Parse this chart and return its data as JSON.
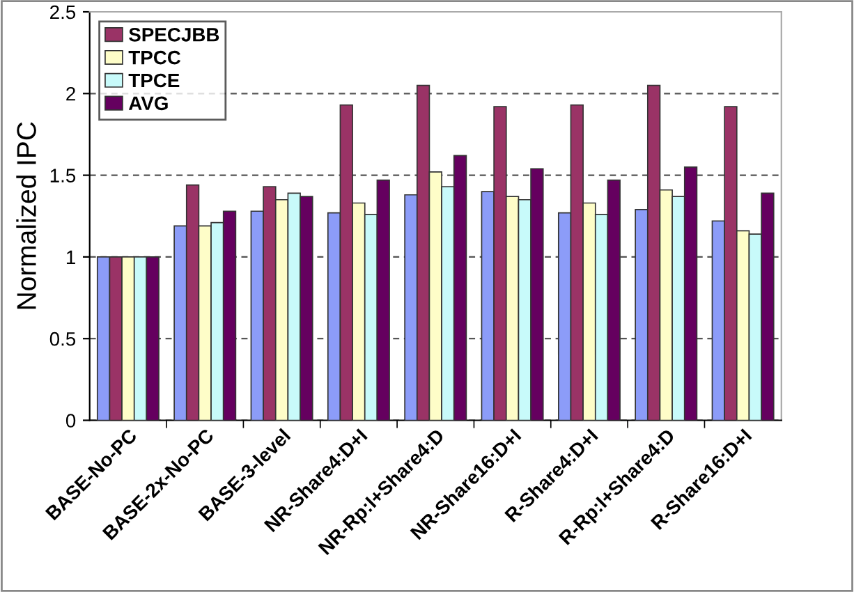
{
  "chart_data": {
    "type": "bar",
    "ylabel": "Normalized IPC",
    "categories": [
      "BASE-No-PC",
      "BASE-2x-No-PC",
      "BASE-3-level",
      "NR-Share4:D+I",
      "NR-Rp:I+Share4:D",
      "NR-Share16:D+I",
      "R-Share4:D+I",
      "R-Rp:I+Share4:D",
      "R-Share16:D+I"
    ],
    "series": [
      {
        "color": "#8c9cf8",
        "values": [
          1,
          1.19,
          1.28,
          1.27,
          1.38,
          1.4,
          1.27,
          1.29,
          1.22
        ]
      },
      {
        "name": "SPECJBB",
        "color": "#9a3366",
        "values": [
          1,
          1.44,
          1.43,
          1.93,
          2.05,
          1.92,
          1.93,
          2.05,
          1.92
        ]
      },
      {
        "name": "TPCC",
        "color": "#fefdc8",
        "values": [
          1,
          1.19,
          1.35,
          1.33,
          1.52,
          1.37,
          1.33,
          1.41,
          1.16
        ]
      },
      {
        "name": "TPCE",
        "color": "#c8fafa",
        "values": [
          1,
          1.21,
          1.39,
          1.26,
          1.43,
          1.35,
          1.26,
          1.37,
          1.14
        ]
      },
      {
        "name": "AVG",
        "color": "#65005f",
        "values": [
          1,
          1.28,
          1.37,
          1.47,
          1.62,
          1.54,
          1.47,
          1.55,
          1.39
        ]
      }
    ],
    "ylim": [
      0,
      2.5
    ],
    "yticks": [
      0,
      0.5,
      1,
      1.5,
      2,
      2.5
    ],
    "grid": "y",
    "legend": "top left"
  }
}
